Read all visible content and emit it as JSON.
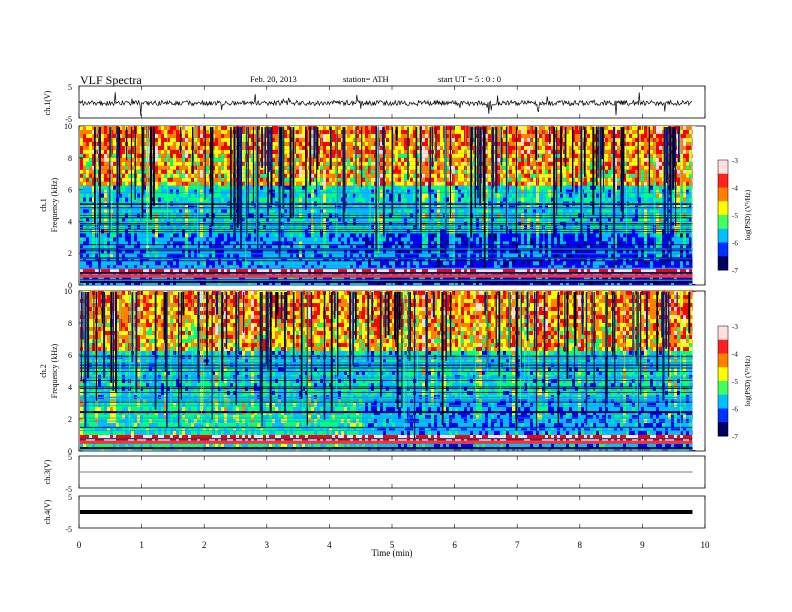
{
  "header": {
    "title": "VLF  Spectra",
    "date": "Feb. 20, 2013",
    "station": "station= ATH",
    "start_ut": "start  UT  =   5  : 0  : 0"
  },
  "chart_data": [
    {
      "id": "ch1-waveform",
      "type": "line",
      "ylabel": "ch.1(V)",
      "yticks": [
        "5",
        "-5"
      ],
      "ylim": [
        -5,
        5
      ],
      "xlim": [
        0,
        10
      ],
      "data_end_x": 9.8,
      "description_level": "noisy broadband signal around 0 V with frequent spikes"
    },
    {
      "id": "ch1-spectrogram",
      "type": "heatmap",
      "ylabel": "ch.1\nFrequency  (kHz)",
      "ylim": [
        0,
        10
      ],
      "yticks": [
        0,
        2,
        4,
        6,
        8,
        10
      ],
      "xlim": [
        0,
        10
      ],
      "data_end_x": 9.8,
      "colorbar": {
        "label": "log(PSD) (V²/Hz)",
        "ticks": [
          "-3",
          "-4",
          "-5",
          "-6",
          "-7"
        ],
        "range": [
          -7,
          -3
        ]
      },
      "colors": [
        "#00007f",
        "#0000ff",
        "#00bfff",
        "#00ff7f",
        "#ffff00",
        "#ff7f00",
        "#ff0000",
        "#ffdede"
      ],
      "segments": [
        {
          "x": [
            0,
            4.55
          ],
          "low_band_kHz": [
            0.3,
            2.6
          ],
          "level": "green-cyan"
        },
        {
          "x": [
            4.55,
            5.95
          ],
          "low_band_kHz": [
            0.3,
            1.3
          ],
          "level": "blue"
        },
        {
          "x": [
            5.95,
            9.8
          ],
          "low_band_kHz": [
            0.3,
            1.0
          ],
          "level": "blue"
        }
      ]
    },
    {
      "id": "ch2-spectrogram",
      "type": "heatmap",
      "ylabel": "ch.2\nFrequency  (kHz)",
      "ylim": [
        0,
        10
      ],
      "yticks": [
        0,
        2,
        4,
        6,
        8,
        10
      ],
      "xlim": [
        0,
        10
      ],
      "data_end_x": 9.8,
      "colorbar": {
        "label": "log(PSD) (V²/Hz)",
        "ticks": [
          "-3",
          "-4",
          "-5",
          "-6",
          "-7"
        ],
        "range": [
          -7,
          -3
        ]
      }
    },
    {
      "id": "ch3-waveform",
      "type": "line",
      "ylabel": "ch.3(V)",
      "yticks": [
        "5",
        "-5"
      ],
      "ylim": [
        -5,
        5
      ],
      "xlim": [
        0,
        10
      ],
      "description_level": "flat near 0 V"
    },
    {
      "id": "ch4-waveform",
      "type": "line",
      "ylabel": "ch.4(V)",
      "yticks": [
        "5",
        "-5"
      ],
      "ylim": [
        -5,
        5
      ],
      "xlim": [
        0,
        10
      ],
      "description_level": "thick band near 0 V"
    }
  ],
  "xaxis": {
    "label": "Time  (min)",
    "ticks": [
      "0",
      "1",
      "2",
      "3",
      "4",
      "5",
      "6",
      "7",
      "8",
      "9",
      "10"
    ]
  }
}
